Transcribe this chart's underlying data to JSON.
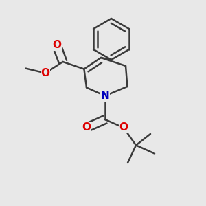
{
  "bg_color": "#e8e8e8",
  "bond_color": "#3a3a3a",
  "bond_width": 1.8,
  "atom_colors": {
    "O": "#dd0000",
    "N": "#0000bb",
    "C": "#3a3a3a"
  },
  "font_size": 11
}
